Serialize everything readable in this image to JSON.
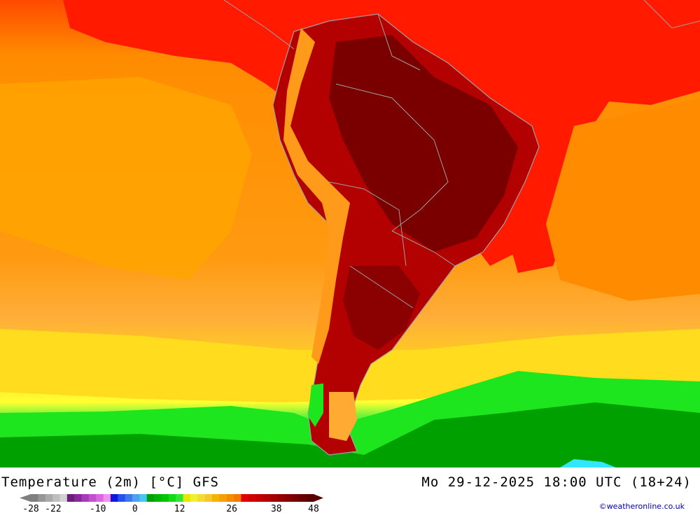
{
  "title": {
    "left": "Temperature (2m) [°C] GFS",
    "right": "Mo 29-12-2025 18:00 UTC (18+24)"
  },
  "legend": {
    "tick_labels": [
      "-28",
      "-22",
      "-10",
      "0",
      "12",
      "26",
      "38",
      "48"
    ],
    "tick_values": [
      -28,
      -22,
      -10,
      0,
      12,
      26,
      38,
      48
    ],
    "range": [
      -28,
      48
    ],
    "colors": [
      "#7f7f7f",
      "#969696",
      "#aaaaaa",
      "#bebebe",
      "#d2d2d2",
      "#6a1f7a",
      "#8a2a9a",
      "#a83cb8",
      "#c44ecf",
      "#dd66e0",
      "#f090f0",
      "#1414dc",
      "#2850f0",
      "#3c78f0",
      "#50a0f0",
      "#46c8f0",
      "#00a000",
      "#00b400",
      "#00c800",
      "#14dc14",
      "#32e632",
      "#e6e600",
      "#f0f032",
      "#f0dc32",
      "#f5c832",
      "#f5b400",
      "#f5a000",
      "#f58c00",
      "#f57800",
      "#e10000",
      "#d20000",
      "#c30000",
      "#b40000",
      "#a50000",
      "#960000",
      "#870000",
      "#780000",
      "#690000",
      "#5a0000"
    ]
  },
  "credit": "©weatheronline.co.uk",
  "map_colors": {
    "deep_red": "#8b0000",
    "red": "#ee1c1c",
    "orange": "#ff8c00",
    "light_orange": "#ffa833",
    "yellow": "#ffe81a",
    "green": "#19e619",
    "dark_green": "#009600",
    "cyan": "#33e6ff",
    "border": "#a0a0a0"
  }
}
